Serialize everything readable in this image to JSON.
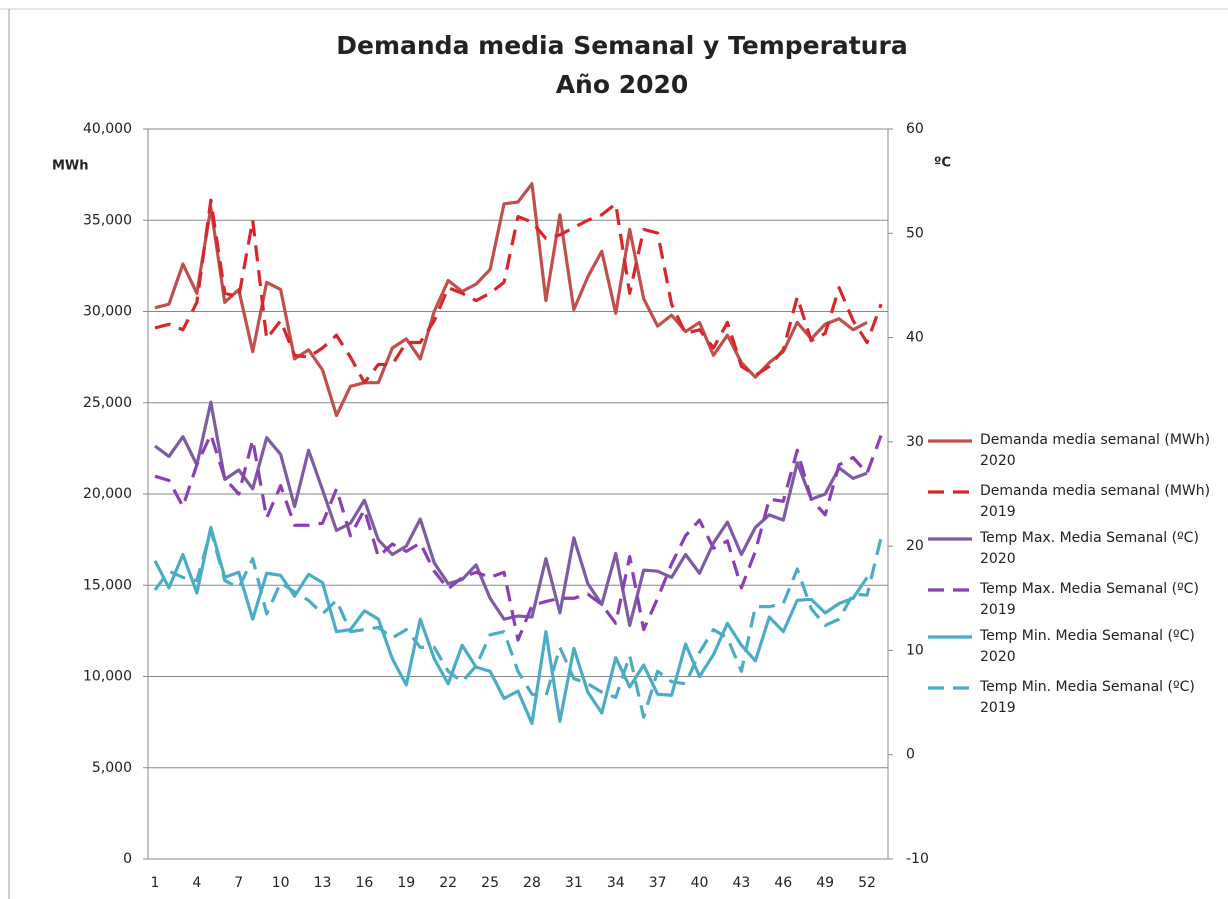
{
  "chart_data": {
    "type": "line",
    "title": "Demanda media Semanal y Temperatura",
    "subtitle": "Año 2020",
    "y_label": "MWh",
    "y2_label": "ºC",
    "categories": [
      1,
      null,
      null,
      4,
      null,
      null,
      7,
      null,
      null,
      10,
      null,
      null,
      13,
      null,
      null,
      16,
      null,
      null,
      19,
      null,
      null,
      22,
      null,
      null,
      25,
      null,
      null,
      28,
      null,
      null,
      31,
      null,
      null,
      34,
      null,
      null,
      37,
      null,
      null,
      40,
      null,
      null,
      43,
      null,
      null,
      46,
      null,
      null,
      49,
      null,
      null,
      52,
      null
    ],
    "ylim": [
      0,
      40000
    ],
    "yticks": [
      0,
      {
        "value": 5000,
        "label": "5,000"
      },
      {
        "value": 10000,
        "label": "10,000"
      },
      {
        "value": 15000,
        "label": "15,000"
      },
      {
        "value": 20000,
        "label": "20,000"
      },
      {
        "value": 25000,
        "label": "25,000"
      },
      {
        "value": 30000,
        "label": "30,000"
      },
      {
        "value": 35000,
        "label": "35,000"
      },
      {
        "value": 40000,
        "label": "40,000"
      }
    ],
    "y2lim": [
      -10,
      60
    ],
    "y2ticks": [
      -10,
      0,
      10,
      20,
      30,
      40,
      50,
      60
    ],
    "grid": true,
    "legend": "right",
    "series": [
      {
        "name": "Demanda media semanal (MWh)\n2020",
        "color": "#c0504d",
        "dash": false,
        "values": [
          30200,
          30400,
          32600,
          31000,
          35700,
          30500,
          31200,
          27800,
          31600,
          31200,
          27400,
          27900,
          26800,
          24300,
          25900,
          26100,
          26100,
          28000,
          28500,
          27400,
          30000,
          31700,
          31100,
          31500,
          32300,
          35900,
          36000,
          37000,
          30600,
          35300,
          30100,
          31900,
          33300,
          29900,
          34500,
          30700,
          29200,
          29800,
          28900,
          29400,
          27600,
          28700,
          27200,
          26400,
          27200,
          27800,
          29400,
          28500,
          29300,
          29600,
          29000,
          29400,
          null
        ]
      },
      {
        "name": "Demanda media semanal (MWh)\n2019",
        "color": "#d9262a",
        "dash": true,
        "values": [
          29100,
          29300,
          29000,
          30500,
          36100,
          31000,
          30800,
          35000,
          28500,
          29500,
          27600,
          27500,
          28000,
          28700,
          27500,
          26100,
          27100,
          27100,
          28300,
          28300,
          29500,
          31300,
          31000,
          30600,
          31000,
          31600,
          35200,
          34900,
          34000,
          34200,
          34600,
          35000,
          35300,
          35900,
          31000,
          34500,
          34300,
          30400,
          28800,
          29000,
          28000,
          29400,
          27000,
          26500,
          27000,
          27900,
          30800,
          28400,
          28800,
          31300,
          29500,
          28300,
          30400
        ]
      },
      {
        "name": "Temp Max. Media Semanal (ºC)\n2020",
        "color": "#7d5ca3",
        "dash": false,
        "axis": "y2",
        "values": [
          29.6,
          28.6,
          30.5,
          27.8,
          33.8,
          26.4,
          27.3,
          25.5,
          30.4,
          28.8,
          23.8,
          29.2,
          25.4,
          21.5,
          22.2,
          24.4,
          20.6,
          19.2,
          20.0,
          22.6,
          18.4,
          16.4,
          16.8,
          18.2,
          15.0,
          13.0,
          13.3,
          13.2,
          18.8,
          13.6,
          20.8,
          16.4,
          14.4,
          19.3,
          12.4,
          17.7,
          17.6,
          17.0,
          19.2,
          17.4,
          20.3,
          22.3,
          19.2,
          21.8,
          23.0,
          22.5,
          28.0,
          24.5,
          25.0,
          27.5,
          26.5,
          27.0,
          null
        ]
      },
      {
        "name": "Temp Max. Media Semanal (ºC)\n2019",
        "color": "#8b3fb4",
        "dash": true,
        "axis": "y2",
        "values": [
          26.7,
          26.3,
          23.8,
          27.8,
          30.7,
          26.5,
          25.0,
          30.2,
          22.7,
          25.8,
          22.0,
          22.0,
          22.2,
          25.5,
          21.0,
          23.5,
          19.0,
          20.2,
          19.5,
          20.3,
          17.6,
          15.9,
          17.0,
          17.5,
          17.0,
          17.5,
          11.0,
          14.3,
          14.7,
          15.0,
          15.0,
          15.4,
          14.4,
          12.6,
          19.0,
          12.0,
          15.0,
          18.3,
          21.0,
          22.5,
          19.8,
          20.5,
          16.0,
          19.5,
          24.5,
          24.3,
          29.2,
          24.5,
          23.0,
          27.8,
          28.5,
          27.0,
          30.6
        ]
      },
      {
        "name": "Temp Min. Media Semanal (ºC)\n2020",
        "color": "#4bacc6",
        "dash": false,
        "axis": "y2",
        "values": [
          18.6,
          16.0,
          19.2,
          15.5,
          21.8,
          17.0,
          17.5,
          13.0,
          17.4,
          17.2,
          15.2,
          17.3,
          16.5,
          11.8,
          12.0,
          13.8,
          13.0,
          9.2,
          6.7,
          13.0,
          9.2,
          6.8,
          10.5,
          8.4,
          8.0,
          5.4,
          6.1,
          3.0,
          11.8,
          3.2,
          10.2,
          6.0,
          4.0,
          9.3,
          6.5,
          8.6,
          5.8,
          5.7,
          10.6,
          7.5,
          9.6,
          12.6,
          10.5,
          9.0,
          13.2,
          11.8,
          14.8,
          14.9,
          13.6,
          14.5,
          15.0,
          17.0,
          null
        ]
      },
      {
        "name": "Temp Min. Media Semanal (ºC)\n2019",
        "color": "#4bacc6",
        "dash": true,
        "axis": "y2",
        "values": [
          15.8,
          17.6,
          17.0,
          16.7,
          21.5,
          16.7,
          16.0,
          18.8,
          13.5,
          16.5,
          15.6,
          14.8,
          13.5,
          14.8,
          11.8,
          12.0,
          12.2,
          11.2,
          12.0,
          10.3,
          10.3,
          8.0,
          7.0,
          8.5,
          11.5,
          11.8,
          8.0,
          5.8,
          5.6,
          10.3,
          7.3,
          6.8,
          6.0,
          5.5,
          9.5,
          3.6,
          8.0,
          7.0,
          6.8,
          9.8,
          12.0,
          11.2,
          8.0,
          14.2,
          14.2,
          14.5,
          17.8,
          14.0,
          12.4,
          13.0,
          15.4,
          15.3,
          20.8
        ]
      }
    ]
  }
}
